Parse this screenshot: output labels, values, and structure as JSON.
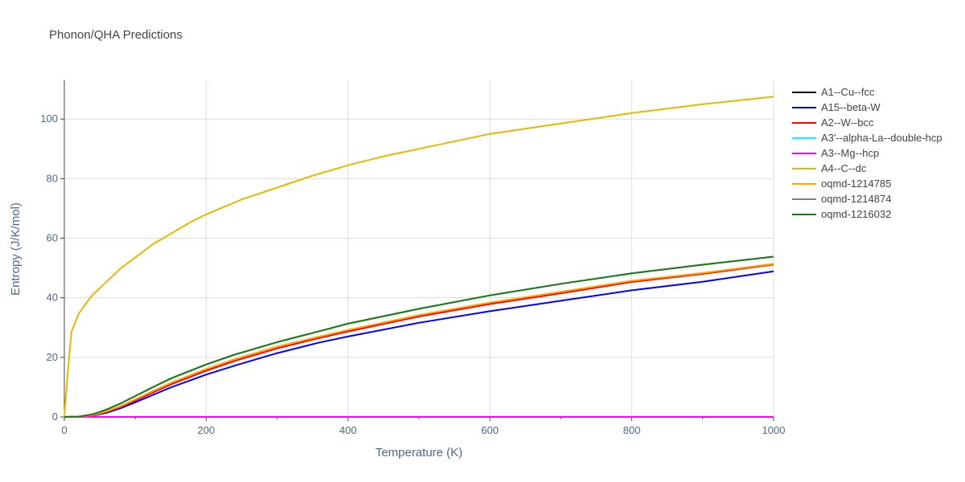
{
  "chart_data": {
    "type": "line",
    "title": "Phonon/QHA Predictions",
    "xlabel": "Temperature (K)",
    "ylabel": "Entropy (J/K/mol)",
    "xlim": [
      0,
      1000
    ],
    "ylim": [
      0,
      113
    ],
    "xticks": [
      0,
      200,
      400,
      600,
      800,
      1000
    ],
    "yticks": [
      0,
      20,
      40,
      60,
      80,
      100
    ],
    "grid": true,
    "legend_position": "right",
    "series": [
      {
        "name": "A1--Cu--fcc",
        "color": "#000000",
        "x": [
          0,
          1000
        ],
        "y": [
          0,
          0
        ]
      },
      {
        "name": "A15--beta-W",
        "color": "#0000ff",
        "x": [
          0,
          20,
          40,
          60,
          80,
          100,
          125,
          150,
          200,
          240,
          300,
          360,
          400,
          500,
          600,
          700,
          800,
          900,
          1000
        ],
        "y": [
          0,
          0.05,
          0.4,
          1.4,
          3.0,
          4.9,
          7.4,
          9.9,
          14.2,
          17.2,
          21.4,
          25.0,
          27.0,
          31.6,
          35.5,
          39.0,
          42.5,
          45.4,
          48.9
        ]
      },
      {
        "name": "A2--W--bcc",
        "color": "#ff0000",
        "x": [
          0,
          20,
          40,
          60,
          80,
          100,
          125,
          150,
          200,
          240,
          300,
          360,
          400,
          500,
          600,
          700,
          800,
          900,
          1000
        ],
        "y": [
          0,
          0.06,
          0.5,
          1.7,
          3.4,
          5.5,
          8.2,
          10.9,
          15.5,
          18.8,
          23.0,
          26.5,
          28.7,
          33.7,
          37.9,
          41.5,
          45.3,
          48.0,
          51.2
        ]
      },
      {
        "name": "A3'--alpha-La--double-hcp",
        "color": "#00ffff",
        "x": [
          0,
          1000
        ],
        "y": [
          0,
          0
        ]
      },
      {
        "name": "A3--Mg--hcp",
        "color": "#ff00ff",
        "x": [
          0,
          1000
        ],
        "y": [
          0,
          0
        ]
      },
      {
        "name": "A4--C--dc",
        "color": "#e6b800",
        "x": [
          0,
          5,
          10,
          20,
          30,
          40,
          60,
          80,
          100,
          125,
          150,
          175,
          200,
          250,
          300,
          350,
          400,
          450,
          500,
          600,
          700,
          800,
          900,
          1000
        ],
        "y": [
          0,
          15,
          28.5,
          34.5,
          38.0,
          41.0,
          45.5,
          50.0,
          53.5,
          58.0,
          61.5,
          65.0,
          68.0,
          73.0,
          77.0,
          81.0,
          84.5,
          87.5,
          90.0,
          95.0,
          98.5,
          102.0,
          105.0,
          107.5
        ]
      },
      {
        "name": "oqmd-1214785",
        "color": "#ffa500",
        "x": [
          0,
          20,
          40,
          60,
          80,
          100,
          125,
          150,
          200,
          240,
          300,
          360,
          400,
          500,
          600,
          700,
          800,
          900,
          1000
        ],
        "y": [
          0,
          0.07,
          0.6,
          1.9,
          3.7,
          5.9,
          8.7,
          11.4,
          16.1,
          19.4,
          23.6,
          27.0,
          29.2,
          34.2,
          38.4,
          42.0,
          45.7,
          48.3,
          51.4
        ]
      },
      {
        "name": "oqmd-1214874",
        "color": "#808080",
        "x": [
          0,
          20,
          40,
          60,
          80,
          100,
          125,
          150,
          200,
          240,
          300,
          360,
          400,
          500,
          600,
          700,
          800,
          900,
          1000
        ],
        "y": [
          0,
          0.1,
          0.9,
          2.5,
          4.6,
          7.0,
          10.0,
          12.9,
          17.6,
          20.9,
          25.1,
          28.8,
          31.3,
          36.3,
          40.8,
          44.7,
          48.2,
          51.1,
          53.8
        ]
      },
      {
        "name": "oqmd-1216032",
        "color": "#1a7a1a",
        "x": [
          0,
          20,
          40,
          60,
          80,
          100,
          125,
          150,
          200,
          240,
          300,
          360,
          400,
          500,
          600,
          700,
          800,
          900,
          1000
        ],
        "y": [
          0,
          0.1,
          0.9,
          2.5,
          4.6,
          7.0,
          10.0,
          12.9,
          17.6,
          20.9,
          25.1,
          28.8,
          31.3,
          36.3,
          40.8,
          44.7,
          48.2,
          51.1,
          53.8
        ]
      }
    ]
  }
}
